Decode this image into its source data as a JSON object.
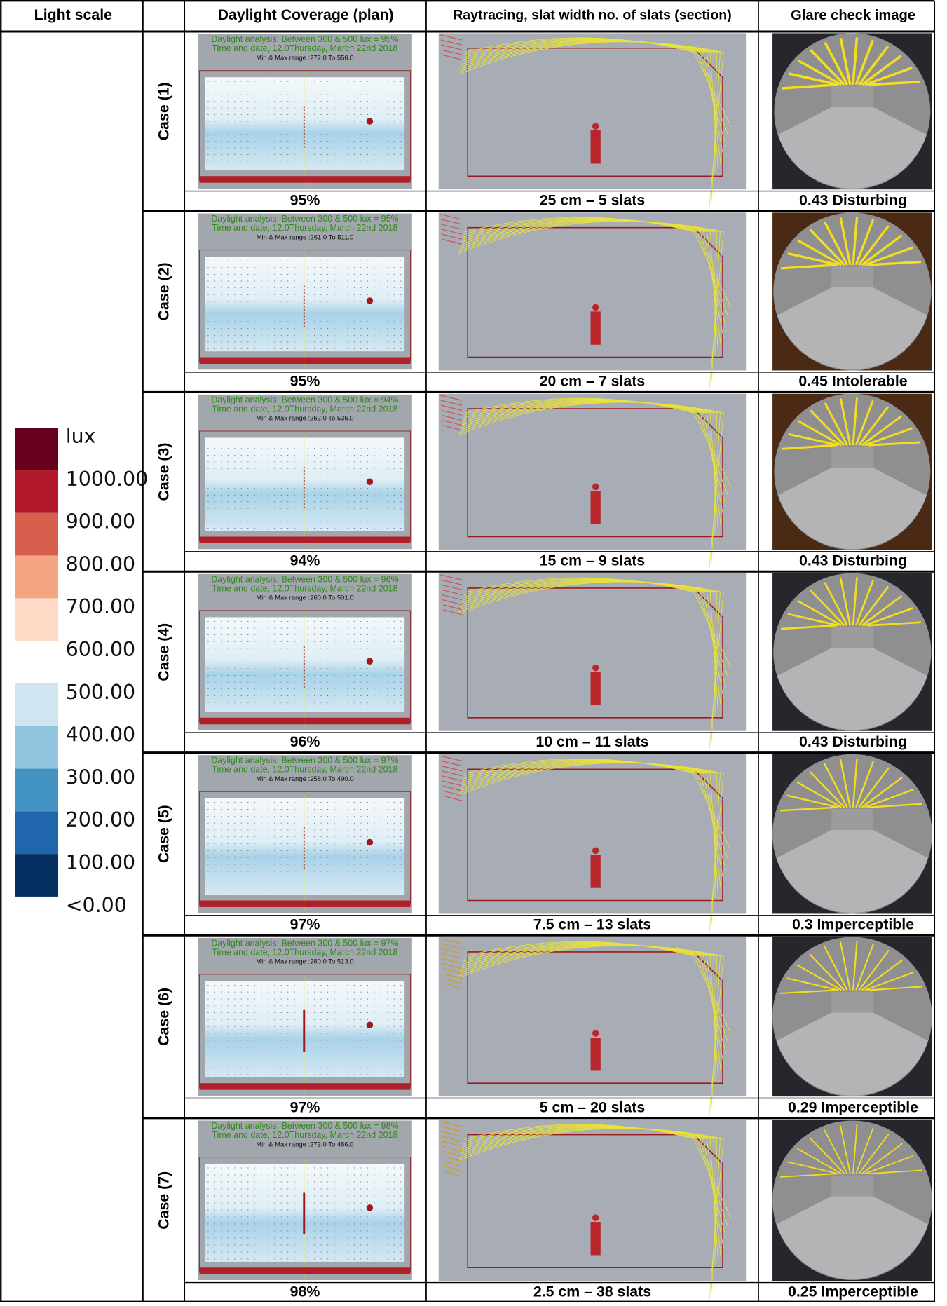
{
  "header": {
    "light_scale": "Light scale",
    "plan": "Daylight Coverage (plan)",
    "section": "Raytracing, slat width no. of slats (section)",
    "glare": "Glare check image"
  },
  "light_scale": {
    "unit": "lux",
    "labels": [
      "1000.00",
      "900.00",
      "800.00",
      "700.00",
      "600.00",
      "500.00",
      "400.00",
      "300.00",
      "200.00",
      "100.00",
      "<0.00"
    ],
    "colors": [
      "#67001f",
      "#b2182b",
      "#d6604d",
      "#f4a582",
      "#fddbc7",
      "#ffffff",
      "#d1e5f0",
      "#92c5de",
      "#4393c3",
      "#2166ac",
      "#053061"
    ]
  },
  "cases": [
    {
      "label": "Case (1)",
      "plan_lines": [
        "Daylight analysis: Between 300 & 500 lux = 95%",
        "Time and date, 12.0Thursday, March 22nd 2018",
        "Min & Max range :272.0 To 556.0"
      ],
      "coverage": "95%",
      "slats": "25 cm – 5 slats",
      "glare": "0.43 Disturbing"
    },
    {
      "label": "Case (2)",
      "plan_lines": [
        "Daylight analysis: Between 300 & 500 lux = 95%",
        "Time and date, 12.0Thursday, March 22nd 2018",
        "Min & Max range :261.0 To 511.0"
      ],
      "coverage": "95%",
      "slats": "20 cm – 7 slats",
      "glare": "0.45 Intolerable"
    },
    {
      "label": "Case (3)",
      "plan_lines": [
        "Daylight analysis: Between 300 & 500 lux = 94%",
        "Time and date, 12.0Thursday, March 22nd 2018",
        "Min & Max range :262.0 To 536.0"
      ],
      "coverage": "94%",
      "slats": "15 cm – 9 slats",
      "glare": "0.43 Disturbing"
    },
    {
      "label": "Case (4)",
      "plan_lines": [
        "Daylight analysis: Between 300 & 500 lux = 96%",
        "Time and date, 12.0Thursday, March 22nd 2018",
        "Min & Max range :260.0 To 501.0"
      ],
      "coverage": "96%",
      "slats": "10 cm – 11 slats",
      "glare": "0.43 Disturbing"
    },
    {
      "label": "Case (5)",
      "plan_lines": [
        "Daylight analysis: Between 300 & 500 lux = 97%",
        "Time and date, 12.0Thursday, March 22nd 2018",
        "Min & Max range :258.0 To 490.0"
      ],
      "coverage": "97%",
      "slats": "7.5 cm – 13 slats",
      "glare": "0.3 Imperceptible"
    },
    {
      "label": "Case (6)",
      "plan_lines": [
        "Daylight analysis: Between 300 & 500 lux = 97%",
        "Time and date, 12.0Thursday, March 22nd 2018",
        "Min & Max range :280.0 To 513.0"
      ],
      "coverage": "97%",
      "slats": "5 cm – 20 slats",
      "glare": "0.29 Imperceptible"
    },
    {
      "label": "Case (7)",
      "plan_lines": [
        "Daylight analysis: Between 300 & 500 lux = 98%",
        "Time and date, 12.0Thursday, March 22nd 2018",
        "Min & Max range :273.0 To 486.0"
      ],
      "coverage": "98%",
      "slats": "2.5 cm – 38 slats",
      "glare": "0.25 Imperceptible"
    }
  ]
}
